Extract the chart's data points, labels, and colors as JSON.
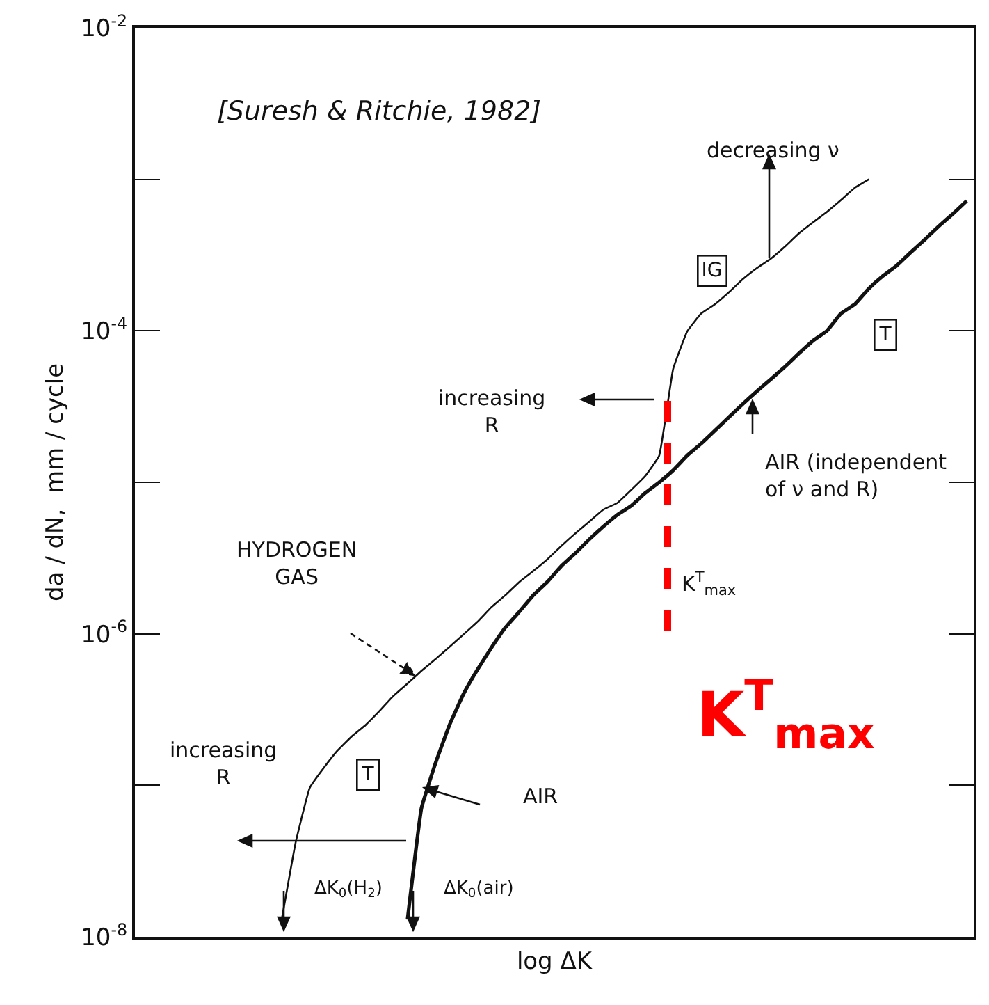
{
  "chart_data": {
    "type": "line",
    "xlabel": "log ΔK",
    "ylabel": "da / dN,  mm / cycle",
    "categories": [
      null,
      null,
      null,
      null,
      null,
      null,
      null,
      null,
      null,
      null,
      null,
      null,
      null,
      null,
      null,
      null,
      null,
      null,
      null,
      null,
      null,
      null,
      null,
      null,
      null,
      null,
      null,
      null,
      null,
      null,
      null,
      null,
      null,
      null,
      null,
      null,
      null,
      null,
      null,
      null,
      null,
      null,
      null,
      null,
      null,
      null,
      null,
      null,
      null,
      null,
      null,
      null,
      null,
      null,
      null,
      null,
      null,
      null,
      null,
      null
    ],
    "series": [
      {
        "color": "#111111",
        "values": [
          null,
          null,
          null,
          null,
          null,
          null,
          null,
          null,
          null,
          null,
          1.3e-08,
          4.2e-08,
          9.6e-08,
          1.3e-07,
          1.7e-07,
          2.1e-07,
          2.5e-07,
          3.1e-07,
          3.9e-07,
          4.7e-07,
          5.7e-07,
          6.8e-07,
          8.2e-07,
          9.9e-07,
          1.2e-06,
          1.5e-06,
          1.8e-06,
          2.2e-06,
          2.6e-06,
          3.1e-06,
          3.8e-06,
          4.6e-06,
          5.5e-06,
          6.6e-06,
          7.3e-06,
          8.9e-06,
          1.1e-05,
          1.5e-05,
          5.6e-05,
          9.9e-05,
          0.00013,
          0.00015,
          0.00018,
          0.00022,
          0.00026,
          0.0003,
          0.00036,
          0.00044,
          0.00052,
          0.00061,
          0.00073,
          0.00088,
          0.001,
          null,
          null,
          null,
          null,
          null,
          null,
          null
        ]
      },
      {
        "color": "#111111",
        "values": [
          null,
          null,
          null,
          null,
          null,
          null,
          null,
          null,
          null,
          null,
          null,
          null,
          null,
          null,
          null,
          null,
          null,
          null,
          null,
          1.3e-08,
          7.1e-08,
          1.4e-07,
          2.5e-07,
          4e-07,
          5.8e-07,
          8.1e-07,
          1.1e-06,
          1.4e-06,
          1.8e-06,
          2.2e-06,
          2.8e-06,
          3.4e-06,
          4.2e-06,
          5.1e-06,
          6.1e-06,
          7e-06,
          8.5e-06,
          1e-05,
          1.2e-05,
          1.5e-05,
          1.8e-05,
          2.2e-05,
          2.7e-05,
          3.3e-05,
          4e-05,
          4.8e-05,
          5.8e-05,
          7.1e-05,
          8.6e-05,
          0.0001,
          0.00013,
          0.00015,
          0.00019,
          0.00023,
          0.00027,
          0.00033,
          0.0004,
          0.00049,
          0.00059,
          0.00072
        ]
      }
    ],
    "ylim": [
      1e-08,
      0.01
    ],
    "yticks": [
      {
        "value": 1e-08,
        "label": "10$^{-8}$"
      },
      {
        "value": 1e-06,
        "label": "10$^{-6}$"
      },
      {
        "value": 0.0001,
        "label": "10$^{-4}$"
      },
      {
        "value": 0.01,
        "label": "10$^{-2}$"
      }
    ],
    "log": "y",
    "grid": false,
    "legend": false,
    "marker": "none",
    "line_style": "solid",
    "tick_labels": "y",
    "annotations": [
      "[Suresh & Ritchie, 1982]",
      "decreasing ν",
      "IG",
      "T",
      "increasing\nR",
      "AIR (independent\nof ν and R)",
      "T",
      "increasing\nR",
      "ΔK$_{0}$(H$_{2}$)",
      "ΔK$_{0}$(air)",
      "K$^{T}$$_{max}$",
      "HYDROGEN\nGAS",
      "AIR",
      "K$^{T}$$_{max}$"
    ]
  }
}
